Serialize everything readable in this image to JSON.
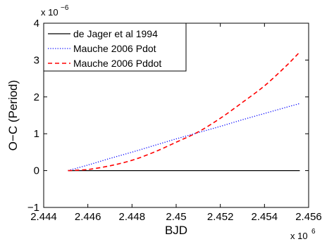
{
  "chart_data": {
    "type": "line",
    "title": "",
    "xlabel": "BJD",
    "ylabel": "O−C (Period)",
    "x_multiplier": "x 10",
    "x_exponent": "6",
    "y_multiplier": "x 10",
    "y_exponent": "−6",
    "xlim": [
      2444000,
      2456000
    ],
    "ylim": [
      -1e-06,
      4e-06
    ],
    "xticks": [
      2444000,
      2446000,
      2448000,
      2450000,
      2452000,
      2454000,
      2456000
    ],
    "xtick_labels": [
      "2.444",
      "2.446",
      "2.448",
      "2.45",
      "2.452",
      "2.454",
      "2.456"
    ],
    "yticks": [
      -1e-06,
      0,
      1e-06,
      2e-06,
      3e-06,
      4e-06
    ],
    "ytick_labels": [
      "−1",
      "0",
      "1",
      "2",
      "3",
      "4"
    ],
    "grid": false,
    "legend_position": "top-left",
    "series": [
      {
        "name": "de Jager et al 1994",
        "color": "#000000",
        "style": "solid",
        "x": [
          2445100,
          2455600
        ],
        "y": [
          0,
          0
        ]
      },
      {
        "name": "Mauche 2006 Pdot",
        "color": "#0000ff",
        "style": "dotted",
        "x": [
          2445100,
          2446000,
          2447000,
          2448000,
          2449000,
          2450000,
          2451000,
          2452000,
          2453000,
          2454000,
          2455000,
          2455600
        ],
        "y": [
          0,
          1.5e-07,
          3.3e-07,
          5e-07,
          6.8e-07,
          8.6e-07,
          1.03e-06,
          1.2e-06,
          1.38e-06,
          1.55e-06,
          1.72e-06,
          1.82e-06
        ]
      },
      {
        "name": "Mauche 2006 Pddot",
        "color": "#ff0000",
        "style": "dashed",
        "x": [
          2445100,
          2446000,
          2447000,
          2448000,
          2449000,
          2450000,
          2451000,
          2452000,
          2453000,
          2454000,
          2455000,
          2455600
        ],
        "y": [
          0,
          3e-08,
          1.3e-07,
          2.8e-07,
          5e-07,
          7.7e-07,
          1.05e-06,
          1.42e-06,
          1.85e-06,
          2.3e-06,
          2.85e-06,
          3.22e-06
        ]
      }
    ]
  }
}
